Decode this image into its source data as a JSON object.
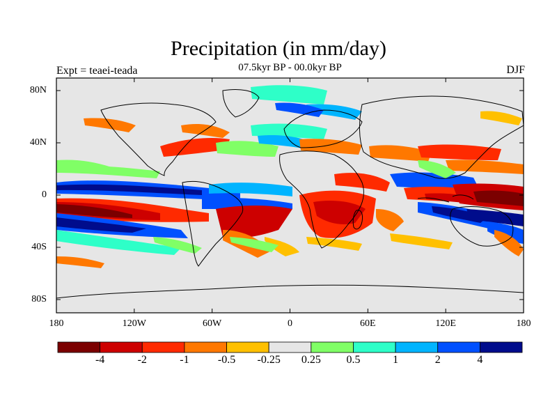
{
  "title": "Precipitation (in mm/day)",
  "subtitle": "07.5kyr BP - 00.0kyr BP",
  "left_label": "Expt = teaei-teada",
  "right_label": "DJF",
  "lat_ticks": [
    "80N",
    "40N",
    "0",
    "40S",
    "80S"
  ],
  "lon_ticks": [
    "180",
    "120W",
    "60W",
    "0",
    "60E",
    "120E",
    "180"
  ],
  "colorbar": {
    "labels": [
      "-4",
      "-2",
      "-1",
      "-0.5",
      "-0.25",
      "0.25",
      "0.5",
      "1",
      "2",
      "4"
    ],
    "colors": [
      "#7b0000",
      "#cd0000",
      "#ff2a00",
      "#ff7800",
      "#ffc000",
      "#e6e6e6",
      "#80ff66",
      "#2effc8",
      "#00b4ff",
      "#0050ff",
      "#000c8c"
    ]
  },
  "map_colors": {
    "background": "#e6e6e6",
    "coastline": "#000000",
    "frame": "#000000"
  }
}
